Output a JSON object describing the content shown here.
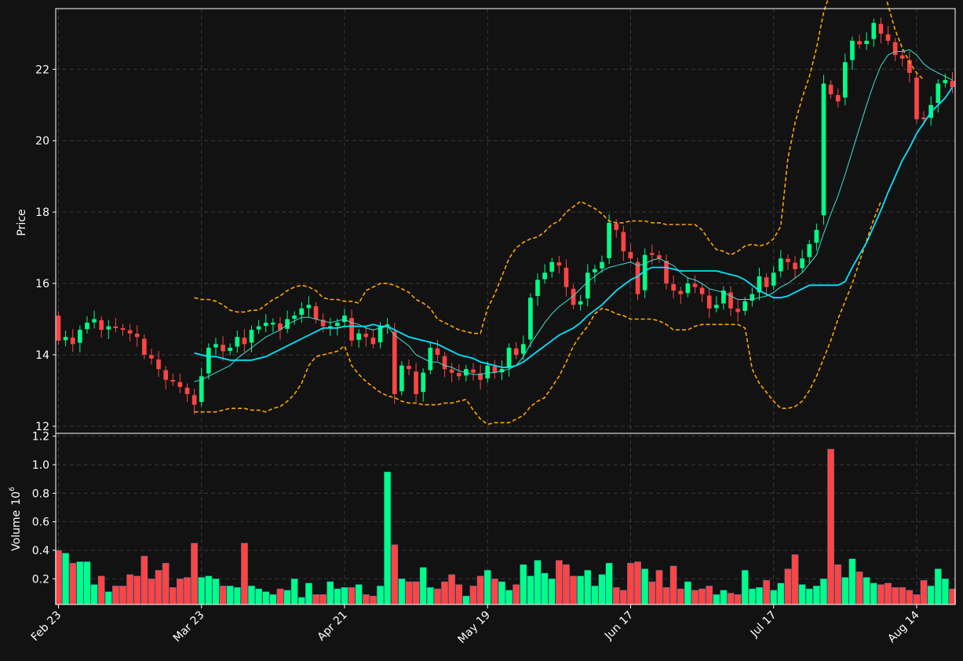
{
  "colors": {
    "background": "#121212",
    "up": "#00ff88",
    "down": "#ff4444",
    "ma_fast": "#40e0d0",
    "ma_slow": "#00e5ff",
    "band": "#ffa500",
    "grid": "#3a3a3a",
    "axis": "#ffffff"
  },
  "chart_data": {
    "type": "candlestick",
    "price_axis": {
      "label": "Price",
      "ylim": [
        11.8,
        23.7
      ],
      "ticks": [
        12,
        14,
        16,
        18,
        20,
        22
      ],
      "tick_labels": [
        "12",
        "14",
        "16",
        "18",
        "20",
        "22"
      ]
    },
    "volume_axis": {
      "label": "Volume",
      "exponent_label": "6",
      "ylim": [
        0.02,
        1.22
      ],
      "ticks": [
        0.2,
        0.4,
        0.6,
        0.8,
        1.0,
        1.2
      ],
      "tick_labels": [
        "0.2",
        "0.4",
        "0.6",
        "0.8",
        "1.0",
        "1.2"
      ]
    },
    "x_ticks": [
      {
        "index": 0,
        "label": "Feb 23"
      },
      {
        "index": 20,
        "label": "Mar 23"
      },
      {
        "index": 40,
        "label": "Apr 21"
      },
      {
        "index": 60,
        "label": "May 19"
      },
      {
        "index": 80,
        "label": "Jun 17"
      },
      {
        "index": 100,
        "label": "Jul 17"
      },
      {
        "index": 120,
        "label": "Aug 14"
      }
    ],
    "grid": true,
    "n_bars": 126,
    "close": [
      14.4,
      14.5,
      14.3,
      14.7,
      14.9,
      15.0,
      14.7,
      14.8,
      14.75,
      14.7,
      14.6,
      14.5,
      14.0,
      13.9,
      13.6,
      13.3,
      13.25,
      13.1,
      12.9,
      12.6,
      13.4,
      14.2,
      14.3,
      14.1,
      14.2,
      14.5,
      14.3,
      14.7,
      14.8,
      14.9,
      14.9,
      14.7,
      15.0,
      15.1,
      15.3,
      15.4,
      15.0,
      14.8,
      14.8,
      14.9,
      15.1,
      14.4,
      14.6,
      14.5,
      14.3,
      14.8,
      14.85,
      12.9,
      13.7,
      13.6,
      12.9,
      13.5,
      14.2,
      14.0,
      13.6,
      13.5,
      13.4,
      13.6,
      13.5,
      13.3,
      13.7,
      13.5,
      13.6,
      14.2,
      14.0,
      14.3,
      15.6,
      16.1,
      16.3,
      16.6,
      16.5,
      15.9,
      15.4,
      15.5,
      16.3,
      16.4,
      16.6,
      17.7,
      17.5,
      16.9,
      16.7,
      15.7,
      16.8,
      16.8,
      16.7,
      16.0,
      15.8,
      15.7,
      16.0,
      15.9,
      15.7,
      15.3,
      15.4,
      15.8,
      15.3,
      15.2,
      15.5,
      15.7,
      16.2,
      15.9,
      16.3,
      16.7,
      16.6,
      16.4,
      16.7,
      17.1,
      17.5,
      21.6,
      21.3,
      21.1,
      22.2,
      22.8,
      22.7,
      22.8,
      23.3,
      23.0,
      22.8,
      22.4,
      22.3,
      21.9,
      20.6,
      20.6,
      21.0,
      21.6,
      21.7,
      21.5
    ],
    "ma_fast": [
      null,
      null,
      null,
      null,
      null,
      null,
      null,
      null,
      null,
      null,
      null,
      null,
      null,
      null,
      null,
      null,
      null,
      null,
      null,
      13.25,
      13.3,
      13.4,
      13.5,
      13.6,
      13.7,
      13.9,
      14.05,
      14.2,
      14.35,
      14.5,
      14.6,
      14.7,
      14.85,
      14.95,
      15.05,
      15.05,
      15.0,
      14.95,
      14.9,
      14.95,
      15.0,
      14.9,
      14.85,
      14.75,
      14.7,
      14.75,
      14.8,
      14.55,
      14.4,
      14.25,
      14.0,
      13.9,
      13.8,
      13.8,
      13.7,
      13.65,
      13.55,
      13.5,
      13.45,
      13.45,
      13.5,
      13.5,
      13.55,
      13.6,
      13.7,
      13.95,
      14.3,
      14.6,
      14.9,
      15.15,
      15.35,
      15.5,
      15.65,
      15.85,
      16.05,
      16.2,
      16.35,
      16.45,
      16.5,
      16.55,
      16.6,
      16.5,
      16.55,
      16.65,
      16.7,
      16.6,
      16.5,
      16.3,
      16.15,
      16.1,
      16.0,
      15.85,
      15.8,
      15.75,
      15.65,
      15.55,
      15.55,
      15.55,
      15.6,
      15.65,
      15.75,
      15.9,
      16.0,
      16.15,
      16.3,
      16.55,
      16.8,
      17.4,
      17.95,
      18.45,
      19.05,
      19.7,
      20.35,
      21.0,
      21.6,
      22.1,
      22.4,
      22.5,
      22.5,
      22.55,
      22.4,
      22.15,
      22.0,
      21.9,
      21.8,
      21.7
    ],
    "ma_slow": [
      null,
      null,
      null,
      null,
      null,
      null,
      null,
      null,
      null,
      null,
      null,
      null,
      null,
      null,
      null,
      null,
      null,
      null,
      null,
      14.05,
      14.0,
      13.95,
      13.95,
      13.9,
      13.85,
      13.85,
      13.85,
      13.85,
      13.9,
      13.95,
      14.05,
      14.15,
      14.25,
      14.35,
      14.45,
      14.55,
      14.65,
      14.75,
      14.75,
      14.75,
      14.8,
      14.8,
      14.8,
      14.8,
      14.85,
      14.8,
      14.8,
      14.7,
      14.6,
      14.5,
      14.45,
      14.4,
      14.35,
      14.3,
      14.2,
      14.1,
      14.0,
      13.95,
      13.9,
      13.8,
      13.75,
      13.7,
      13.65,
      13.65,
      13.7,
      13.8,
      13.95,
      14.1,
      14.25,
      14.4,
      14.55,
      14.65,
      14.75,
      14.9,
      15.1,
      15.25,
      15.4,
      15.6,
      15.8,
      15.95,
      16.1,
      16.2,
      16.35,
      16.45,
      16.45,
      16.45,
      16.4,
      16.35,
      16.35,
      16.35,
      16.35,
      16.35,
      16.35,
      16.3,
      16.25,
      16.2,
      16.1,
      15.95,
      15.8,
      15.7,
      15.6,
      15.6,
      15.65,
      15.75,
      15.85,
      15.95,
      15.95,
      15.95,
      15.95,
      15.95,
      16.05,
      16.45,
      16.8,
      17.15,
      17.6,
      18.05,
      18.55,
      19.0,
      19.45,
      19.8,
      20.2,
      20.5,
      20.8,
      21.0,
      21.2,
      21.5
    ],
    "band_upper": [
      null,
      null,
      null,
      null,
      null,
      null,
      null,
      null,
      null,
      null,
      null,
      null,
      null,
      null,
      null,
      null,
      null,
      null,
      null,
      15.6,
      15.55,
      15.55,
      15.5,
      15.4,
      15.25,
      15.2,
      15.2,
      15.25,
      15.25,
      15.4,
      15.55,
      15.65,
      15.8,
      15.9,
      15.95,
      15.9,
      15.8,
      15.6,
      15.55,
      15.55,
      15.5,
      15.5,
      15.45,
      15.8,
      15.9,
      16.0,
      16.0,
      15.95,
      15.85,
      15.75,
      15.55,
      15.45,
      15.3,
      15.0,
      14.9,
      14.8,
      14.7,
      14.65,
      14.6,
      14.6,
      15.3,
      15.7,
      16.2,
      16.7,
      17.0,
      17.15,
      17.25,
      17.3,
      17.45,
      17.65,
      17.75,
      18.0,
      18.15,
      18.3,
      18.2,
      18.1,
      17.95,
      17.75,
      17.7,
      17.7,
      17.75,
      17.75,
      17.75,
      17.7,
      17.7,
      17.65,
      17.65,
      17.65,
      17.65,
      17.65,
      17.5,
      17.2,
      16.95,
      16.9,
      16.8,
      16.9,
      17.05,
      17.1,
      17.05,
      17.1,
      17.25,
      17.6,
      19.5,
      20.5,
      21.2,
      21.8,
      22.6,
      23.6,
      24.2,
      25.0,
      25.5,
      25.8,
      25.8,
      25.5,
      25.2,
      24.5,
      23.8,
      23.1,
      22.6,
      22.2,
      21.9,
      21.7
    ],
    "band_lower": [
      null,
      null,
      null,
      null,
      null,
      null,
      null,
      null,
      null,
      null,
      null,
      null,
      null,
      null,
      null,
      null,
      null,
      null,
      null,
      12.4,
      12.4,
      12.4,
      12.4,
      12.45,
      12.5,
      12.5,
      12.5,
      12.45,
      12.45,
      12.4,
      12.5,
      12.55,
      12.7,
      12.9,
      13.2,
      13.7,
      13.95,
      14.0,
      14.05,
      14.1,
      14.25,
      13.7,
      13.45,
      13.25,
      13.1,
      12.95,
      12.85,
      12.8,
      12.7,
      12.65,
      12.65,
      12.6,
      12.6,
      12.6,
      12.65,
      12.65,
      12.7,
      12.75,
      12.45,
      12.2,
      12.05,
      12.1,
      12.1,
      12.1,
      12.2,
      12.3,
      12.55,
      12.7,
      12.8,
      13.1,
      13.4,
      13.8,
      14.25,
      14.55,
      14.8,
      15.15,
      15.3,
      15.25,
      15.15,
      15.1,
      15.0,
      15.0,
      15.0,
      15.0,
      14.95,
      14.85,
      14.7,
      14.7,
      14.7,
      14.8,
      14.85,
      14.85,
      14.85,
      14.85,
      14.85,
      14.85,
      14.75,
      13.6,
      13.2,
      12.95,
      12.7,
      12.5,
      12.5,
      12.55,
      12.7,
      13.0,
      13.4,
      13.9,
      14.4,
      15.0,
      15.5,
      16.0,
      16.6,
      17.2,
      17.8,
      18.3
    ],
    "volume": [
      0.4,
      0.38,
      0.31,
      0.32,
      0.32,
      0.16,
      0.22,
      0.11,
      0.15,
      0.15,
      0.23,
      0.22,
      0.36,
      0.2,
      0.26,
      0.31,
      0.14,
      0.2,
      0.21,
      0.45,
      0.21,
      0.22,
      0.2,
      0.15,
      0.15,
      0.14,
      0.45,
      0.15,
      0.13,
      0.11,
      0.09,
      0.13,
      0.12,
      0.2,
      0.07,
      0.17,
      0.09,
      0.09,
      0.18,
      0.13,
      0.14,
      0.14,
      0.16,
      0.09,
      0.08,
      0.15,
      0.95,
      0.44,
      0.2,
      0.18,
      0.18,
      0.28,
      0.14,
      0.13,
      0.18,
      0.23,
      0.16,
      0.08,
      0.15,
      0.22,
      0.26,
      0.2,
      0.18,
      0.12,
      0.16,
      0.3,
      0.22,
      0.33,
      0.24,
      0.2,
      0.33,
      0.3,
      0.22,
      0.22,
      0.26,
      0.15,
      0.23,
      0.31,
      0.14,
      0.12,
      0.31,
      0.32,
      0.27,
      0.18,
      0.26,
      0.14,
      0.29,
      0.13,
      0.18,
      0.12,
      0.13,
      0.15,
      0.09,
      0.12,
      0.1,
      0.09,
      0.26,
      0.13,
      0.14,
      0.19,
      0.12,
      0.17,
      0.27,
      0.37,
      0.16,
      0.13,
      0.15,
      0.2,
      1.11,
      0.3,
      0.21,
      0.34,
      0.25,
      0.21,
      0.17,
      0.16,
      0.17,
      0.14,
      0.14,
      0.12,
      0.09,
      0.19,
      0.15,
      0.27,
      0.2,
      0.13
    ]
  }
}
